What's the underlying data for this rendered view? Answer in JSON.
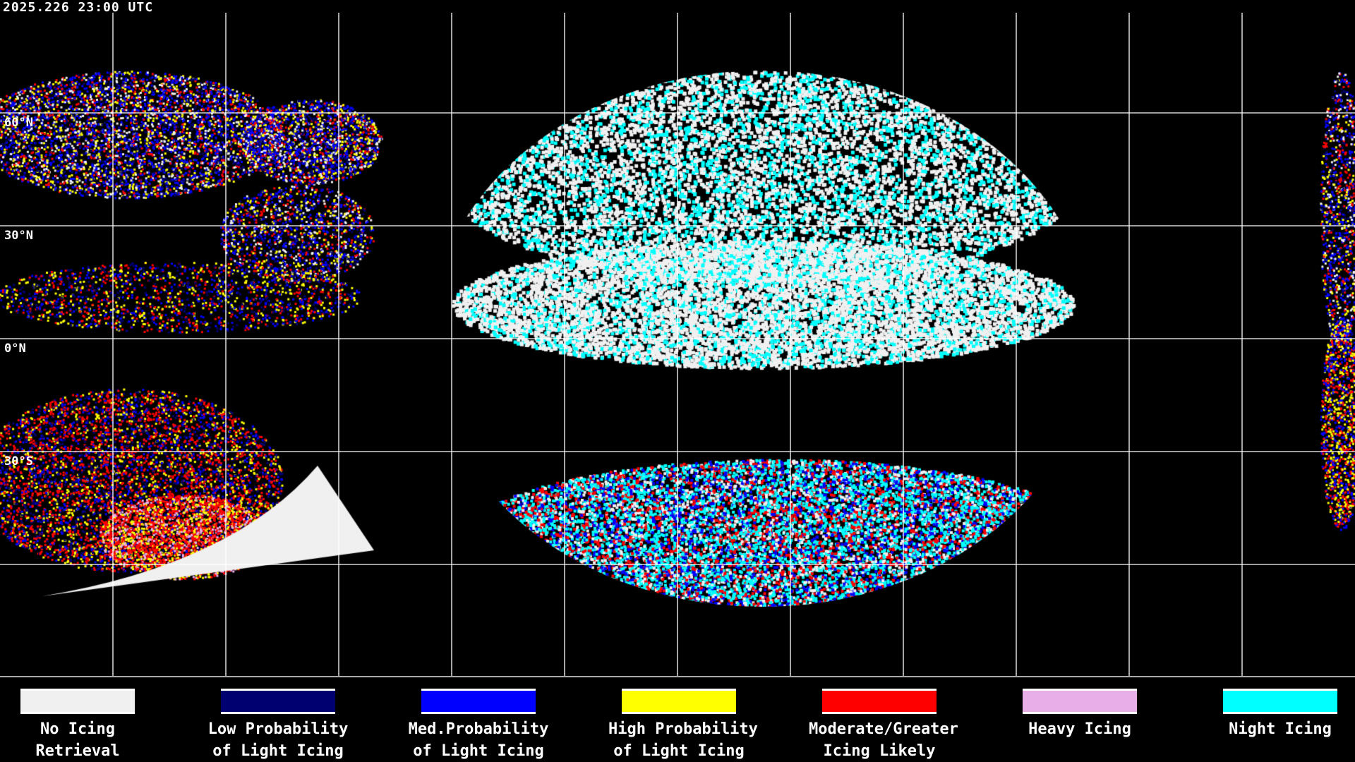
{
  "timestamp": "2025.226 23:00 UTC",
  "lat_labels": [
    "60°N",
    "30°N",
    "0°N",
    "30°S"
  ],
  "colors": {
    "no_icing": "#f0f0f0",
    "low": "#000070",
    "med": "#0000ff",
    "high": "#ffff00",
    "moderate": "#ff0000",
    "heavy": "#e8aee8",
    "night": "#00ffff",
    "coast_grid": "#ffffff"
  },
  "legend": [
    {
      "line1": "No Icing",
      "line2": "Retrieval",
      "color": "#f0f0f0"
    },
    {
      "line1": "Low Probability",
      "line2": "of Light Icing",
      "color": "#000070"
    },
    {
      "line1": "Med.Probability",
      "line2": "of Light Icing",
      "color": "#0000ff"
    },
    {
      "line1": "High Probability",
      "line2": "of Light Icing",
      "color": "#ffff00"
    },
    {
      "line1": "Moderate/Greater",
      "line2": "Icing Likely",
      "color": "#ff0000"
    },
    {
      "line1": "Heavy Icing",
      "line2": "",
      "color": "#e8aee8"
    },
    {
      "line1": "Night Icing",
      "line2": "",
      "color": "#00ffff"
    }
  ]
}
